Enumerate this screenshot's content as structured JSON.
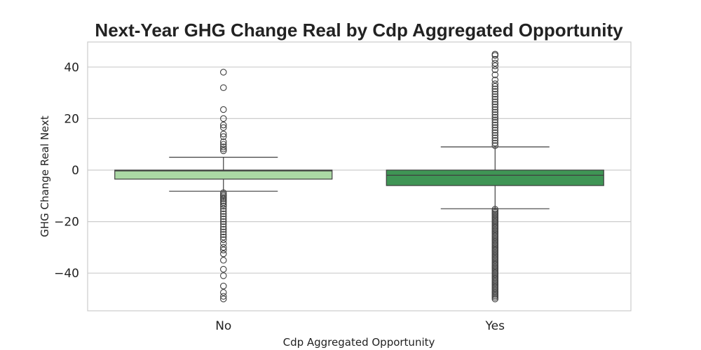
{
  "chart_data": {
    "type": "box",
    "title": "Next-Year GHG Change Real by Cdp Aggregated Opportunity",
    "xlabel": "Cdp Aggregated Opportunity",
    "ylabel": "GHG Change Real Next",
    "ylim": [
      -52,
      50
    ],
    "yticks": [
      40,
      20,
      0,
      -20,
      -40
    ],
    "ytick_labels": [
      "40",
      "20",
      "0",
      "−20",
      "−40"
    ],
    "grid": true,
    "categories": [
      "No",
      "Yes"
    ],
    "colors": [
      "#abd8a5",
      "#3f9555"
    ],
    "box_edge_color": "#3f3f3f",
    "boxes": [
      {
        "category": "No",
        "q1": -3.5,
        "median": -0.3,
        "q3": 0,
        "whisker_low": -8.2,
        "whisker_high": 5,
        "outliers_high": [
          7.5,
          8.2,
          9,
          10,
          11,
          13,
          14,
          16.5,
          17.5,
          20,
          23.5,
          32,
          38
        ],
        "outliers_low": [
          -8.8,
          -9.5,
          -10,
          -10.6,
          -11.2,
          -12,
          -12.6,
          -13.3,
          -14,
          -15,
          -16,
          -17,
          -18,
          -19,
          -20,
          -21,
          -22,
          -23,
          -24,
          -25,
          -26,
          -27,
          -28.5,
          -30,
          -31,
          -32.5,
          -35,
          -38.5,
          -41,
          -45,
          -47.5,
          -49,
          -50
        ]
      },
      {
        "category": "Yes",
        "q1": -6,
        "median": -2,
        "q3": 0,
        "whisker_low": -15,
        "whisker_high": 9,
        "outliers_high": [
          9.5,
          10.5,
          11.5,
          12.5,
          13.5,
          14.5,
          15.5,
          16.5,
          17.5,
          18.5,
          19.5,
          20.5,
          21.5,
          22.5,
          23.5,
          24.5,
          25.5,
          26.5,
          27.5,
          28.5,
          29.5,
          30.5,
          31.5,
          32.5,
          33.5,
          35,
          37,
          39,
          40.5,
          41.5,
          43,
          44.5,
          45
        ],
        "outliers_low": [
          -15.2,
          -15.8,
          -16.4,
          -17,
          -17.6,
          -18.2,
          -18.8,
          -19.4,
          -20,
          -20.6,
          -21.2,
          -21.8,
          -22.4,
          -23,
          -23.6,
          -24.2,
          -24.8,
          -25.4,
          -26,
          -26.6,
          -27.2,
          -27.8,
          -28.4,
          -29,
          -29.6,
          -30.2,
          -30.8,
          -31.4,
          -32,
          -32.6,
          -33.2,
          -33.8,
          -34.4,
          -35,
          -35.6,
          -36.2,
          -36.8,
          -37.4,
          -38,
          -38.6,
          -39.2,
          -39.8,
          -40.4,
          -41,
          -41.6,
          -42.2,
          -42.8,
          -43.4,
          -44,
          -44.6,
          -45.2,
          -45.8,
          -46.4,
          -47,
          -47.6,
          -48.2,
          -48.8,
          -49.4,
          -50
        ]
      }
    ]
  }
}
